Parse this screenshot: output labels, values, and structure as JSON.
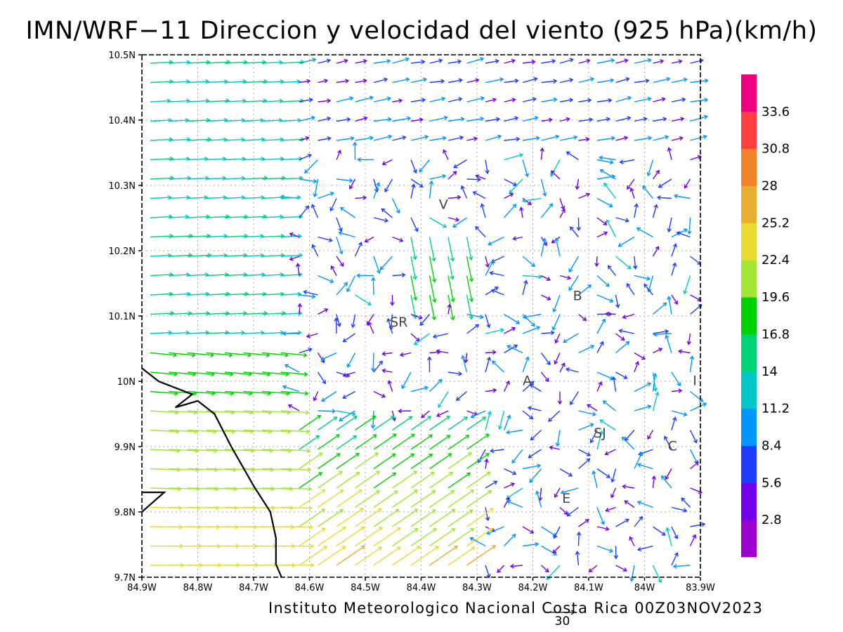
{
  "chart_data": {
    "type": "vector-field",
    "title": "IMN/WRF−11 Direccion y velocidad del viento (925 hPa)(km/h)",
    "footer": "Instituto Meteorologico Nacional Costa Rica 00Z03NOV2023",
    "reference_vector_label": "30",
    "lon_range": [
      -84.9,
      -83.9
    ],
    "lat_range": [
      9.7,
      10.5
    ],
    "x_ticks": [
      "84.9W",
      "84.8W",
      "84.7W",
      "84.6W",
      "84.5W",
      "84.4W",
      "84.3W",
      "84.2W",
      "84.1W",
      "84W",
      "83.9W"
    ],
    "y_ticks": [
      "9.7N",
      "9.8N",
      "9.9N",
      "10N",
      "10.1N",
      "10.2N",
      "10.3N",
      "10.4N",
      "10.5N"
    ],
    "grid": true,
    "colorbar": {
      "labels": [
        "2.8",
        "5.6",
        "8.4",
        "11.2",
        "14",
        "16.8",
        "19.6",
        "22.4",
        "25.2",
        "28",
        "30.8",
        "33.6"
      ],
      "colors": [
        "#9c00d0",
        "#7000e8",
        "#1c3cff",
        "#0096ff",
        "#00c8c8",
        "#00d27a",
        "#00d200",
        "#a0e632",
        "#e6dc32",
        "#e6af2d",
        "#f08228",
        "#ff4040",
        "#f0007d"
      ]
    },
    "places": [
      {
        "label": "V",
        "lon": -84.36,
        "lat": 10.27
      },
      {
        "label": "SR",
        "lon": -84.44,
        "lat": 10.09
      },
      {
        "label": "B",
        "lon": -84.12,
        "lat": 10.13
      },
      {
        "label": "A",
        "lon": -84.21,
        "lat": 10.0
      },
      {
        "label": "SJ",
        "lon": -84.08,
        "lat": 9.92
      },
      {
        "label": "C",
        "lon": -83.95,
        "lat": 9.9
      },
      {
        "label": "E",
        "lon": -84.14,
        "lat": 9.82
      },
      {
        "label": "I",
        "lon": -83.91,
        "lat": 10.0
      }
    ],
    "coastline": [
      [
        -84.9,
        10.02
      ],
      [
        -84.87,
        10.0
      ],
      [
        -84.84,
        9.99
      ],
      [
        -84.81,
        9.98
      ],
      [
        -84.84,
        9.96
      ],
      [
        -84.8,
        9.97
      ],
      [
        -84.77,
        9.95
      ],
      [
        -84.74,
        9.9
      ],
      [
        -84.72,
        9.87
      ],
      [
        -84.7,
        9.84
      ],
      [
        -84.67,
        9.8
      ],
      [
        -84.66,
        9.76
      ],
      [
        -84.66,
        9.72
      ],
      [
        -84.65,
        9.7
      ]
    ],
    "coastline2": [
      [
        -84.9,
        9.8
      ],
      [
        -84.86,
        9.83
      ],
      [
        -84.9,
        9.83
      ]
    ]
  }
}
